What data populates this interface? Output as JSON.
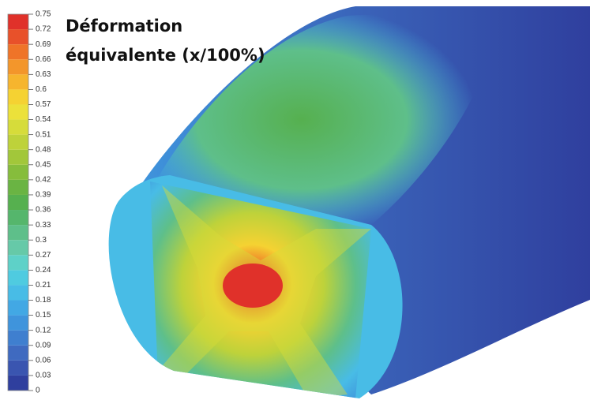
{
  "title_lines": [
    "Déformation",
    "équivalente (x/100%)"
  ],
  "legend": {
    "ticks": [
      0,
      0.03,
      0.06,
      0.09,
      0.12,
      0.15,
      0.18,
      0.21,
      0.24,
      0.27,
      0.3,
      0.33,
      0.36,
      0.39,
      0.42,
      0.45,
      0.48,
      0.51,
      0.54,
      0.57,
      0.6,
      0.63,
      0.66,
      0.69,
      0.72,
      0.75
    ],
    "colors": [
      "#2f3f9e",
      "#3a55b0",
      "#3f6ac0",
      "#3f7fcf",
      "#3f94dc",
      "#42a8e4",
      "#48bce6",
      "#4fcbe0",
      "#5ed1c8",
      "#66c9a8",
      "#5ebf8a",
      "#55b66c",
      "#56b04f",
      "#6ab443",
      "#86bd3c",
      "#a2c73a",
      "#bed23a",
      "#d6dc3a",
      "#ece13a",
      "#f5d232",
      "#f6b52e",
      "#f3962b",
      "#ef7428",
      "#e8512a",
      "#e0312a"
    ]
  }
}
